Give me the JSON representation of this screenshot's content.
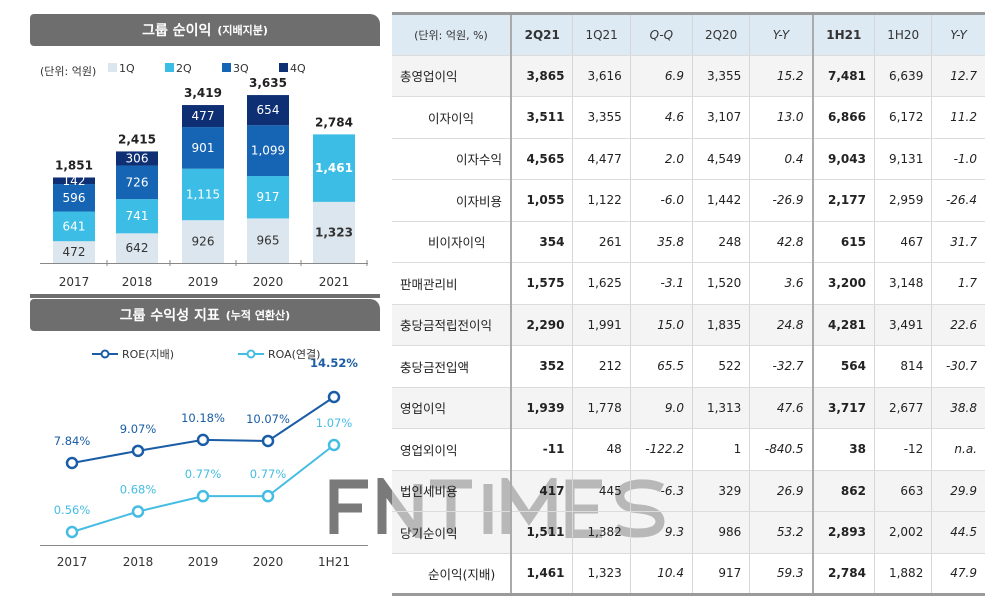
{
  "chart_data": [
    {
      "type": "bar",
      "stacked": true,
      "title": "그룹 순이익",
      "subtitle": "(지배지분)",
      "unit_label": "(단위: 억원)",
      "categories": [
        "2017",
        "2018",
        "2019",
        "2020",
        "2021"
      ],
      "series": [
        {
          "name": "1Q",
          "color": "#dce6ee",
          "values": [
            472,
            642,
            926,
            965,
            1323
          ]
        },
        {
          "name": "2Q",
          "color": "#3bbde6",
          "values": [
            641,
            741,
            1115,
            917,
            1461
          ]
        },
        {
          "name": "3Q",
          "color": "#1565b4",
          "values": [
            596,
            726,
            901,
            1099,
            null
          ]
        },
        {
          "name": "4Q",
          "color": "#0e2f74",
          "values": [
            142,
            306,
            477,
            654,
            null
          ]
        }
      ],
      "totals": [
        "1,851",
        "2,415",
        "3,419",
        "3,635",
        "2,784"
      ],
      "labels": [
        [
          "472",
          "641",
          "596",
          "142"
        ],
        [
          "642",
          "741",
          "726",
          "306"
        ],
        [
          "926",
          "1,115",
          "901",
          "477"
        ],
        [
          "965",
          "917",
          "1,099",
          "654"
        ],
        [
          "1,323",
          "1,461",
          "",
          ""
        ]
      ],
      "legend": "top"
    },
    {
      "type": "line",
      "title": "그룹 수익성 지표",
      "subtitle": "(누적 연환산)",
      "categories": [
        "2017",
        "2018",
        "2019",
        "2020",
        "1H21"
      ],
      "series": [
        {
          "name": "ROE(지배)",
          "color": "#1a5da6",
          "values": [
            7.84,
            9.07,
            10.18,
            10.07,
            14.52
          ],
          "labels": [
            "7.84%",
            "9.07%",
            "10.18%",
            "10.07%",
            "14.52%"
          ]
        },
        {
          "name": "ROA(연결)",
          "color": "#45bde3",
          "values": [
            0.56,
            0.68,
            0.77,
            0.77,
            1.07
          ],
          "labels": [
            "0.56%",
            "0.68%",
            "0.77%",
            "0.77%",
            "1.07%"
          ]
        }
      ],
      "legend": "top"
    }
  ],
  "table": {
    "headers": [
      "(단위: 억원, %)",
      "2Q21",
      "1Q21",
      "Q-Q",
      "2Q20",
      "Y-Y",
      "1H21",
      "1H20",
      "Y-Y"
    ],
    "rows": [
      {
        "label": "총영업이익",
        "indent": 0,
        "values": [
          "3,865",
          "3,616",
          "6.9",
          "3,355",
          "15.2",
          "7,481",
          "6,639",
          "12.7"
        ]
      },
      {
        "label": "이자이익",
        "indent": 1,
        "values": [
          "3,511",
          "3,355",
          "4.6",
          "3,107",
          "13.0",
          "6,866",
          "6,172",
          "11.2"
        ]
      },
      {
        "label": "이자수익",
        "indent": 2,
        "values": [
          "4,565",
          "4,477",
          "2.0",
          "4,549",
          "0.4",
          "9,043",
          "9,131",
          "-1.0"
        ]
      },
      {
        "label": "이자비용",
        "indent": 2,
        "values": [
          "1,055",
          "1,122",
          "-6.0",
          "1,442",
          "-26.9",
          "2,177",
          "2,959",
          "-26.4"
        ]
      },
      {
        "label": "비이자이익",
        "indent": 1,
        "values": [
          "354",
          "261",
          "35.8",
          "248",
          "42.8",
          "615",
          "467",
          "31.7"
        ]
      },
      {
        "label": "판매관리비",
        "indent": 0,
        "values": [
          "1,575",
          "1,625",
          "-3.1",
          "1,520",
          "3.6",
          "3,200",
          "3,148",
          "1.7"
        ]
      },
      {
        "label": "충당금적립전이익",
        "indent": 0,
        "values": [
          "2,290",
          "1,991",
          "15.0",
          "1,835",
          "24.8",
          "4,281",
          "3,491",
          "22.6"
        ]
      },
      {
        "label": "충당금전입액",
        "indent": 0,
        "values": [
          "352",
          "212",
          "65.5",
          "522",
          "-32.7",
          "564",
          "814",
          "-30.7"
        ]
      },
      {
        "label": "영업이익",
        "indent": 0,
        "values": [
          "1,939",
          "1,778",
          "9.0",
          "1,313",
          "47.6",
          "3,717",
          "2,677",
          "38.8"
        ]
      },
      {
        "label": "영업외이익",
        "indent": 0,
        "values": [
          "-11",
          "48",
          "-122.2",
          "1",
          "-840.5",
          "38",
          "-12",
          "n.a."
        ]
      },
      {
        "label": "법인세비용",
        "indent": 0,
        "values": [
          "417",
          "445",
          "-6.3",
          "329",
          "26.9",
          "862",
          "663",
          "29.9"
        ]
      },
      {
        "label": "당기순이익",
        "indent": 0,
        "values": [
          "1,511",
          "1,382",
          "9.3",
          "986",
          "53.2",
          "2,893",
          "2,002",
          "44.5"
        ]
      },
      {
        "label": "순이익(지배)",
        "indent": 1,
        "values": [
          "1,461",
          "1,323",
          "10.4",
          "917",
          "59.3",
          "2,784",
          "1,882",
          "47.9"
        ]
      }
    ]
  },
  "watermark": "FNTIMES"
}
